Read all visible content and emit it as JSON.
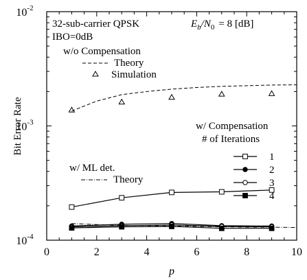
{
  "chart_data": {
    "type": "line",
    "xlabel": "p",
    "ylabel": "Bit Error Rate",
    "xlim": [
      0,
      10
    ],
    "ylim": [
      0.0001,
      0.01
    ],
    "yscale": "log",
    "x_ticks": [
      "0",
      "2",
      "4",
      "6",
      "8",
      "10"
    ],
    "y_ticks": [
      {
        "base": "10",
        "exp": "-2"
      },
      {
        "base": "10",
        "exp": "-3"
      },
      {
        "base": "10",
        "exp": "-4"
      }
    ],
    "annotations": {
      "system": "32-sub-carrier QPSK",
      "ibo": "IBO=0dB",
      "ebn0_label": "E",
      "ebn0_sub_b": "b",
      "ebn0_slash": "/N",
      "ebn0_sub_0": "0",
      "ebn0_value": "= 8 [dB]",
      "wo_comp": "w/o Compensation",
      "wo_theory": "Theory",
      "wo_sim": "Simulation",
      "w_comp": "w/ Compensation",
      "iterations": "# of Iterations",
      "ml_det": "w/ ML det.",
      "ml_theory": "Theory"
    },
    "series": [
      {
        "name": "Theory",
        "group": "w/o Compensation",
        "style": "dashed",
        "x": [
          1,
          2,
          3,
          4,
          5,
          6,
          7,
          8,
          9,
          10
        ],
        "y": [
          0.00135,
          0.00165,
          0.00188,
          0.002,
          0.0021,
          0.00217,
          0.00222,
          0.00225,
          0.00228,
          0.00229
        ]
      },
      {
        "name": "Simulation",
        "group": "w/o Compensation",
        "style": "marker-triangle",
        "x": [
          1,
          3,
          5,
          7,
          9
        ],
        "y": [
          0.00138,
          0.00162,
          0.00178,
          0.0019,
          0.00192
        ]
      },
      {
        "name": "1",
        "group": "w/ Compensation",
        "style": "line-open-square",
        "x": [
          1,
          3,
          5,
          7,
          9
        ],
        "y": [
          0.000195,
          0.000235,
          0.000262,
          0.000265,
          0.000275
        ]
      },
      {
        "name": "2",
        "group": "w/ Compensation",
        "style": "line-filled-circle",
        "x": [
          1,
          3,
          5,
          7,
          9
        ],
        "y": [
          0.000133,
          0.000138,
          0.00014,
          0.000134,
          0.000133
        ]
      },
      {
        "name": "3",
        "group": "w/ Compensation",
        "style": "line-open-circle",
        "x": [
          1,
          3,
          5,
          7,
          9
        ],
        "y": [
          0.000131,
          0.000134,
          0.000136,
          0.000132,
          0.000131
        ]
      },
      {
        "name": "4",
        "group": "w/ Compensation",
        "style": "line-filled-square",
        "x": [
          1,
          3,
          5,
          7,
          9
        ],
        "y": [
          0.000128,
          0.000131,
          0.000132,
          0.000127,
          0.000127
        ]
      },
      {
        "name": "Theory",
        "group": "w/ ML det.",
        "style": "dash-dot",
        "x": [
          1,
          2,
          3,
          4,
          5,
          6,
          7,
          8,
          9,
          10
        ],
        "y": [
          0.00014,
          0.000137,
          0.000135,
          0.000134,
          0.000133,
          0.000132,
          0.000131,
          0.00013,
          0.00013,
          0.000129
        ]
      }
    ]
  }
}
